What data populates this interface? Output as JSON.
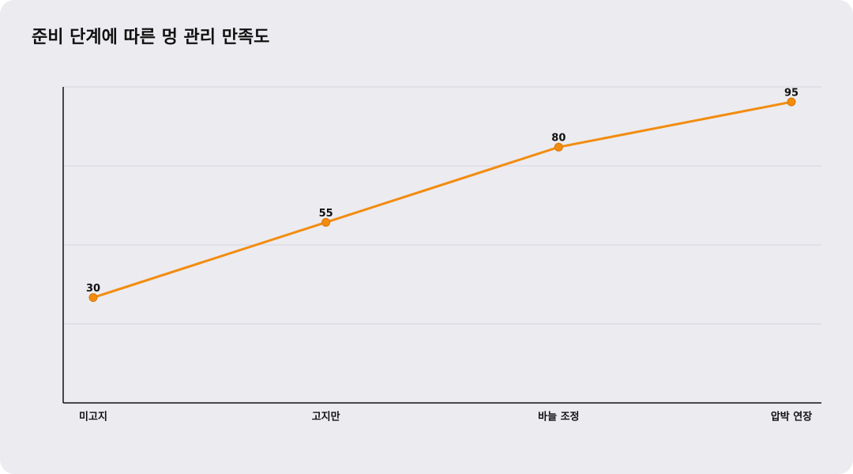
{
  "chart_data": {
    "type": "line",
    "title": "준비 단계에 따른 멍 관리 만족도",
    "categories": [
      "미고지",
      "고지만",
      "바늘 조정",
      "압박 연장"
    ],
    "values": [
      30,
      55,
      80,
      95
    ],
    "color": "#f28c0f",
    "ylim": [
      -5,
      100
    ],
    "grid": true
  }
}
